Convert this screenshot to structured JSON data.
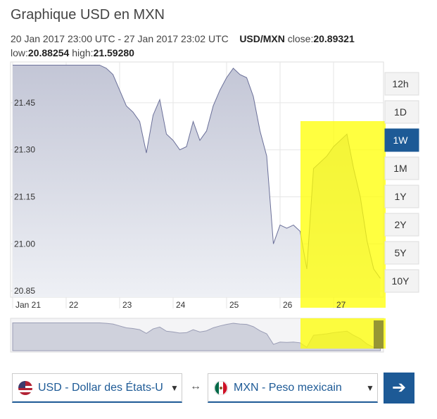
{
  "header": {
    "title": "Graphique USD en MXN",
    "range": "20 Jan 2017 23:00 UTC - 27 Jan 2017 23:02 UTC",
    "pair": "USD/MXN",
    "close_label": "close:",
    "close": "20.89321",
    "low_label": "low:",
    "low": "20.88254",
    "high_label": "high:",
    "high": "21.59280"
  },
  "chart_data": {
    "type": "area",
    "color": "#6b7099",
    "categories": [
      "Jan 21",
      null,
      null,
      null,
      null,
      null,
      null,
      null,
      "22",
      null,
      null,
      null,
      null,
      null,
      null,
      null,
      "23",
      null,
      null,
      null,
      null,
      null,
      null,
      null,
      "24",
      null,
      null,
      null,
      null,
      null,
      null,
      null,
      "25",
      null,
      null,
      null,
      null,
      null,
      null,
      null,
      "26",
      null,
      null,
      null,
      null,
      null,
      null,
      null,
      "27",
      null,
      null,
      null,
      null,
      null,
      null,
      null
    ],
    "values": [
      21.57,
      21.57,
      21.57,
      21.57,
      21.57,
      21.57,
      21.57,
      21.57,
      21.57,
      21.57,
      21.57,
      21.57,
      21.57,
      21.57,
      21.56,
      21.54,
      21.49,
      21.44,
      21.42,
      21.39,
      21.29,
      21.41,
      21.46,
      21.35,
      21.33,
      21.3,
      21.31,
      21.39,
      21.33,
      21.36,
      21.44,
      21.49,
      21.53,
      21.56,
      21.54,
      21.53,
      21.47,
      21.36,
      21.28,
      21.0,
      21.06,
      21.05,
      21.06,
      21.04,
      20.92,
      21.24,
      21.26,
      21.28,
      21.31,
      21.33,
      21.35,
      21.24,
      21.15,
      21.01,
      20.92,
      20.89
    ],
    "ylim": [
      20.83,
      21.58
    ],
    "yticks": [
      {
        "value": 20.85,
        "label": "20.85"
      },
      {
        "value": 21.0,
        "label": "21.00"
      },
      {
        "value": 21.15,
        "label": "21.15"
      },
      {
        "value": 21.3,
        "label": "21.30"
      },
      {
        "value": 21.45,
        "label": "21.45"
      }
    ],
    "grid": true
  },
  "ranges": [
    "12h",
    "1D",
    "1W",
    "1M",
    "1Y",
    "2Y",
    "5Y",
    "10Y"
  ],
  "active_range": 2,
  "converter": {
    "from": "USD - Dollar des États-U",
    "to": "MXN - Peso mexicain"
  }
}
